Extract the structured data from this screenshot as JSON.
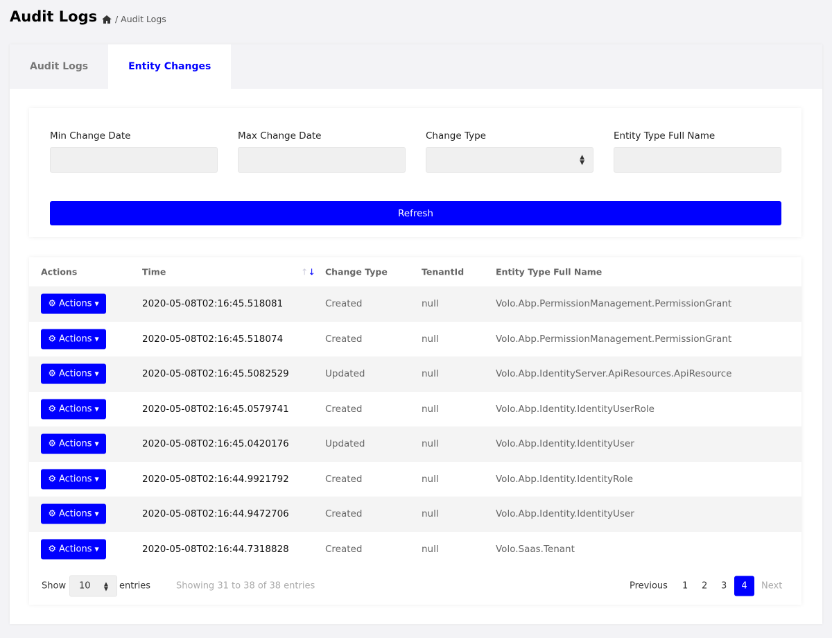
{
  "page": {
    "title": "Audit Logs",
    "breadcrumb": "/ Audit Logs"
  },
  "tabs": [
    {
      "label": "Audit Logs",
      "active": false
    },
    {
      "label": "Entity Changes",
      "active": true
    }
  ],
  "filters": {
    "min_date": "Min Change Date",
    "max_date": "Max Change Date",
    "change_type": "Change Type",
    "entity_type": "Entity Type Full Name",
    "refresh": "Refresh"
  },
  "table": {
    "headers": [
      "Actions",
      "Time",
      "Change Type",
      "TenantId",
      "Entity Type Full Name"
    ],
    "action_label": "Actions",
    "rows": [
      [
        "2020-05-08T02:16:45.518081",
        "Created",
        "null",
        "Volo.Abp.PermissionManagement.PermissionGrant"
      ],
      [
        "2020-05-08T02:16:45.518074",
        "Created",
        "null",
        "Volo.Abp.PermissionManagement.PermissionGrant"
      ],
      [
        "2020-05-08T02:16:45.5082529",
        "Updated",
        "null",
        "Volo.Abp.IdentityServer.ApiResources.ApiResource"
      ],
      [
        "2020-05-08T02:16:45.0579741",
        "Created",
        "null",
        "Volo.Abp.Identity.IdentityUserRole"
      ],
      [
        "2020-05-08T02:16:45.0420176",
        "Updated",
        "null",
        "Volo.Abp.Identity.IdentityUser"
      ],
      [
        "2020-05-08T02:16:44.9921792",
        "Created",
        "null",
        "Volo.Abp.Identity.IdentityRole"
      ],
      [
        "2020-05-08T02:16:44.9472706",
        "Created",
        "null",
        "Volo.Abp.Identity.IdentityUser"
      ],
      [
        "2020-05-08T02:16:44.7318828",
        "Created",
        "null",
        "Volo.Saas.Tenant"
      ]
    ]
  },
  "footer": {
    "show": "Show",
    "page_size": "10",
    "entries": "entries",
    "info": "Showing 31 to 38 of 38 entries",
    "previous": "Previous",
    "pages": [
      "1",
      "2",
      "3",
      "4"
    ],
    "current_page": "4",
    "next": "Next"
  },
  "colors": {
    "accent": "#0000ff"
  }
}
